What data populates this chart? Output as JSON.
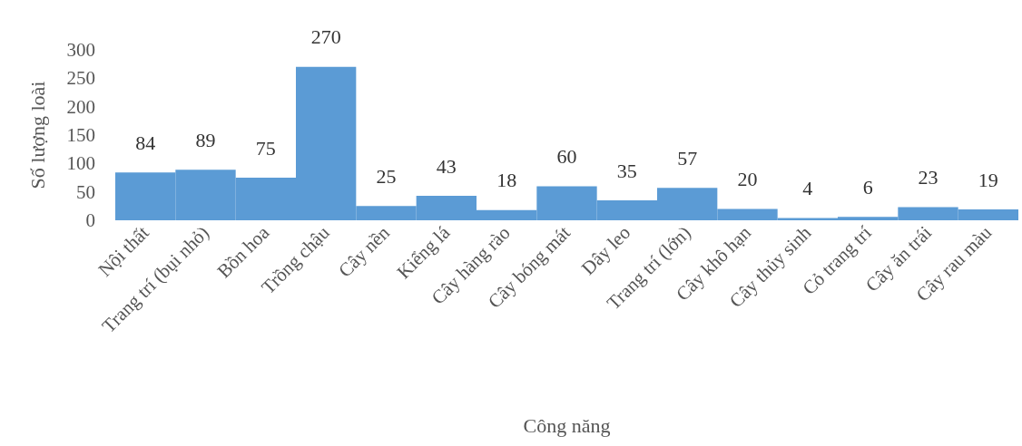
{
  "chart_data": {
    "type": "bar",
    "xlabel": "Công năng",
    "ylabel": "Số lượng loài",
    "categories": [
      "Nội thất",
      "Trang trí (bụi nhỏ)",
      "Bồn hoa",
      "Trồng chậu",
      "Cây nền",
      "Kiểng lá",
      "Cây hàng rào",
      "Cây bóng mát",
      "Dây leo",
      "Trang trí (lớn)",
      "Cây khô hạn",
      "Cây thủy sinh",
      "Cỏ trang trí",
      "Cây ăn trái",
      "Cây rau màu"
    ],
    "values": [
      84,
      89,
      75,
      270,
      25,
      43,
      18,
      60,
      35,
      57,
      20,
      4,
      6,
      23,
      19
    ],
    "color": "#5b9bd5",
    "ylim": [
      0,
      300
    ],
    "yticks": [
      0,
      50,
      100,
      150,
      200,
      250,
      300
    ],
    "grid": false,
    "data_labels": true
  }
}
